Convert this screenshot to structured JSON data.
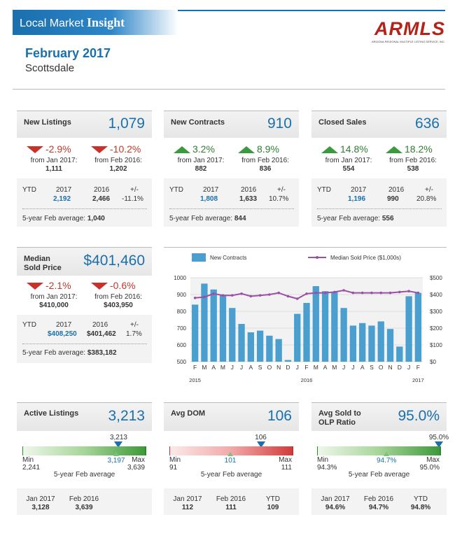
{
  "header": {
    "title_plain": "Local Market ",
    "title_bold": "Insight",
    "logo": "ARMLS",
    "logo_sub": "ARIZONA REGIONAL MULTIPLE LISTING SERVICE, INC.",
    "month": "February 2017",
    "city": "Scottsdale"
  },
  "new_listings": {
    "title": "New Listings",
    "value": "1,079",
    "chg1": "-2.9%",
    "from1": "from Jan 2017:",
    "from1_val": "1,111",
    "chg2": "-10.2%",
    "from2": "from Feb 2016:",
    "from2_val": "1,202",
    "ytd_label": "YTD",
    "y1": "2017",
    "y2": "2016",
    "pm": "+/-",
    "ytd1": "2,192",
    "ytd2": "2,466",
    "ytd_pct": "-11.1%",
    "avg_label": "5-year Feb average:",
    "avg_val": "1,040"
  },
  "new_contracts": {
    "title": "New Contracts",
    "value": "910",
    "chg1": "3.2%",
    "from1": "from Jan 2017:",
    "from1_val": "882",
    "chg2": "8.9%",
    "from2": "from Feb 2016:",
    "from2_val": "836",
    "ytd_label": "YTD",
    "y1": "2017",
    "y2": "2016",
    "pm": "+/-",
    "ytd1": "1,808",
    "ytd2": "1,633",
    "ytd_pct": "10.7%",
    "avg_label": "5-year Feb average:",
    "avg_val": "844"
  },
  "closed_sales": {
    "title": "Closed Sales",
    "value": "636",
    "chg1": "14.8%",
    "from1": "from Jan 2017:",
    "from1_val": "554",
    "chg2": "18.2%",
    "from2": "from Feb 2016:",
    "from2_val": "538",
    "ytd_label": "YTD",
    "y1": "2017",
    "y2": "2016",
    "pm": "+/-",
    "ytd1": "1,196",
    "ytd2": "990",
    "ytd_pct": "20.8%",
    "avg_label": "5-year Feb average:",
    "avg_val": "556"
  },
  "median_price": {
    "title1": "Median",
    "title2": "Sold Price",
    "value": "$401,460",
    "chg1": "-2.1%",
    "from1": "from Jan 2017:",
    "from1_val": "$410,000",
    "chg2": "-0.6%",
    "from2": "from Feb 2016:",
    "from2_val": "$403,950",
    "ytd_label": "YTD",
    "y1": "2017",
    "y2": "2016",
    "pm": "+/-",
    "ytd1": "$408,250",
    "ytd2": "$401,462",
    "ytd_pct": "1.7%",
    "avg_label": "5-year Feb average:",
    "avg_val": "$383,182"
  },
  "chart_data": {
    "type": "bar",
    "legend_bar": "New Contracts",
    "legend_line": "Median Sold Price ($1,000s)",
    "categories": [
      "F",
      "M",
      "A",
      "M",
      "J",
      "J",
      "A",
      "S",
      "O",
      "N",
      "D",
      "J",
      "F",
      "M",
      "A",
      "M",
      "J",
      "J",
      "A",
      "S",
      "O",
      "N",
      "D",
      "J",
      "F"
    ],
    "year_labels": [
      "2015",
      "2016",
      "2017"
    ],
    "series": [
      {
        "name": "New Contracts",
        "values": [
          840,
          965,
          930,
          895,
          820,
          725,
          675,
          685,
          655,
          635,
          510,
          785,
          850,
          950,
          920,
          915,
          820,
          715,
          730,
          715,
          740,
          695,
          590,
          890,
          910
        ]
      },
      {
        "name": "Median Sold Price ($1,000s)",
        "values": [
          380,
          385,
          405,
          395,
          395,
          405,
          390,
          395,
          400,
          410,
          390,
          375,
          405,
          410,
          410,
          415,
          425,
          410,
          410,
          410,
          410,
          410,
          415,
          420,
          410
        ]
      }
    ],
    "y_left_ticks": [
      "1000",
      "900",
      "800",
      "700",
      "600",
      "500"
    ],
    "y_right_ticks": [
      "$500",
      "$400",
      "$300",
      "$200",
      "$100",
      "$0"
    ],
    "ylim_left": [
      500,
      1000
    ],
    "ylim_right": [
      0,
      500
    ],
    "bar_color": "#4a9fcf",
    "line_color": "#9b4fa6"
  },
  "active_listings": {
    "title": "Active Listings",
    "value": "3,213",
    "marker": "3,213",
    "avg": "3,197",
    "min_label": "Min",
    "min_val": "2,241",
    "max_label": "Max",
    "max_val": "3,639",
    "avg_label": "5-year Feb average",
    "c1": "Jan 2017",
    "c1v": "3,128",
    "c2": "Feb 2016",
    "c2v": "3,639",
    "fraction_marker": 0.79,
    "fraction_avg": 0.77
  },
  "avg_dom": {
    "title": "Avg DOM",
    "value": "106",
    "marker": "106",
    "avg": "101",
    "min_label": "Min",
    "min_val": "91",
    "max_label": "Max",
    "max_val": "111",
    "avg_label": "5-year Feb average",
    "c1": "Jan 2017",
    "c1v": "112",
    "c2": "Feb 2016",
    "c2v": "111",
    "c3": "YTD",
    "c3v": "109",
    "fraction_marker": 0.75,
    "fraction_avg": 0.5
  },
  "avg_sold_olp": {
    "title1": "Avg Sold to",
    "title2": "OLP Ratio",
    "value": "95.0%",
    "marker": "95.0%",
    "avg": "94.7%",
    "min_label": "Min",
    "min_val": "94.3%",
    "max_label": "Max",
    "max_val": "95.0%",
    "avg_label": "5-year Feb average",
    "c1": "Jan 2017",
    "c1v": "94.6%",
    "c2": "Feb 2016",
    "c2v": "94.7%",
    "c3": "YTD",
    "c3v": "94.8%",
    "fraction_marker": 1.0,
    "fraction_avg": 0.57
  }
}
